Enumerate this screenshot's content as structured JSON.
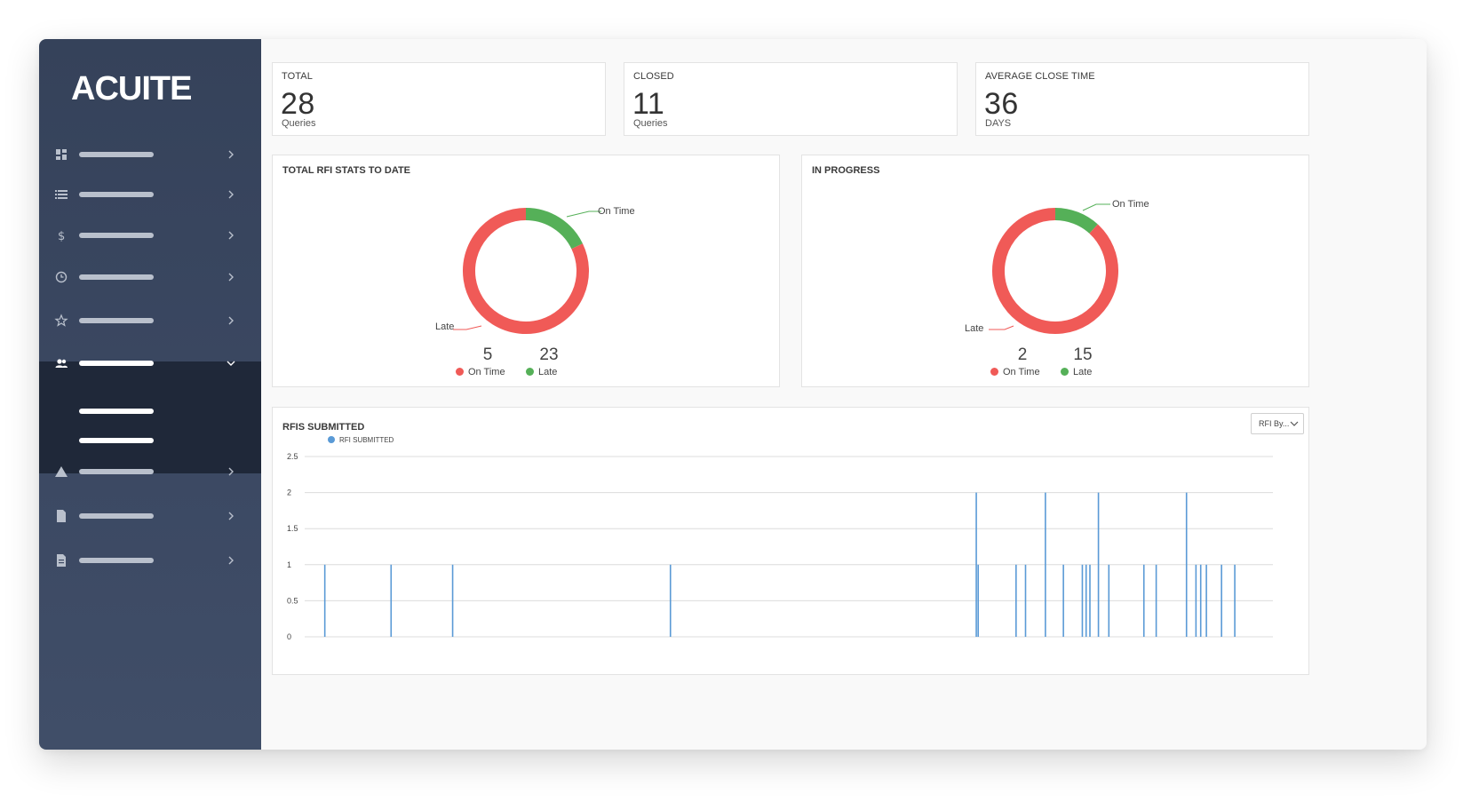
{
  "brand": {
    "logo_text": "ACUITE"
  },
  "colors": {
    "on_time": "#55b058",
    "late": "#f05a57",
    "series": "#5a9ad6",
    "sidebar": "#3b4862",
    "sidebar_active": "#1f2839"
  },
  "sidebar": {
    "items": [
      {
        "icon": "dashboard-icon",
        "expanded": false
      },
      {
        "icon": "list-icon",
        "expanded": false
      },
      {
        "icon": "dollar-icon",
        "expanded": false
      },
      {
        "icon": "clock-icon",
        "expanded": false
      },
      {
        "icon": "star-icon",
        "expanded": false
      },
      {
        "icon": "users-icon",
        "expanded": true,
        "subitems": 2
      },
      {
        "icon": "warning-icon",
        "expanded": false
      },
      {
        "icon": "file-icon",
        "expanded": false
      },
      {
        "icon": "document-icon",
        "expanded": false
      }
    ]
  },
  "stats": [
    {
      "label": "TOTAL",
      "value": "28",
      "unit": "Queries"
    },
    {
      "label": "CLOSED",
      "value": "11",
      "unit": "Queries"
    },
    {
      "label": "AVERAGE CLOSE TIME",
      "value": "36",
      "unit": "DAYS"
    }
  ],
  "donuts": [
    {
      "title": "TOTAL RFI STATS TO DATE",
      "on_time_callout": "On Time",
      "late_callout": "Late",
      "on_time": 5,
      "late": 23,
      "on_time_count": "5",
      "late_count": "23",
      "on_time_legend": "On Time",
      "late_legend": "Late"
    },
    {
      "title": "IN PROGRESS",
      "on_time_callout": "On Time",
      "late_callout": "Late",
      "on_time": 2,
      "late": 15,
      "on_time_count": "2",
      "late_count": "15",
      "on_time_legend": "On Time",
      "late_legend": "Late"
    }
  ],
  "rfis": {
    "title": "RFIS SUBMITTED",
    "dropdown_value": "RFI By...",
    "legend": "RFI SUBMITTED"
  },
  "chart_data": {
    "type": "bar",
    "title": "RFIS SUBMITTED",
    "series": [
      {
        "name": "RFI SUBMITTED",
        "values": [
          1,
          1,
          1,
          1,
          2,
          1,
          1,
          1,
          2,
          1,
          1,
          1,
          1,
          2,
          1,
          1,
          1,
          2,
          1,
          1,
          1,
          1,
          1
        ]
      }
    ],
    "x_index": [
      0.01,
      0.08,
      0.145,
      0.375,
      0.698,
      0.7,
      0.74,
      0.75,
      0.771,
      0.79,
      0.81,
      0.814,
      0.818,
      0.827,
      0.838,
      0.875,
      0.888,
      0.92,
      0.93,
      0.935,
      0.941,
      0.957,
      0.971
    ],
    "ylim": [
      0,
      2.5
    ],
    "yticks": [
      "0",
      "0.5",
      "1",
      "1.5",
      "2",
      "2.5"
    ],
    "grid": true,
    "legend_position": "top-left"
  }
}
